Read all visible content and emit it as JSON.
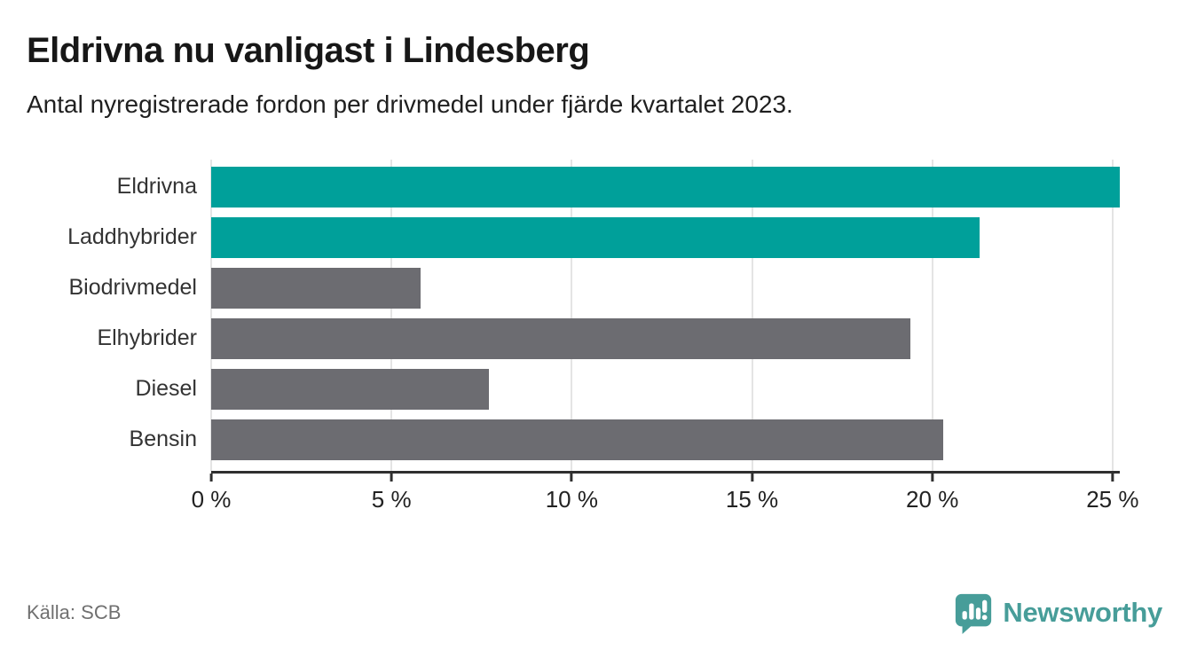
{
  "header": {
    "title": "Eldrivna nu vanligast i Lindesberg",
    "subtitle": "Antal nyregistrerade fordon per drivmedel under fjärde kvartalet 2023."
  },
  "chart_data": {
    "type": "bar",
    "orientation": "horizontal",
    "title": "Eldrivna nu vanligast i Lindesberg",
    "xlabel": "",
    "ylabel": "",
    "unit": "%",
    "categories": [
      "Eldrivna",
      "Laddhybrider",
      "Biodrivmedel",
      "Elhybrider",
      "Diesel",
      "Bensin"
    ],
    "values": [
      25.2,
      21.3,
      5.8,
      19.4,
      7.7,
      20.3
    ],
    "bar_colors": [
      "#00A09A",
      "#00A09A",
      "#6C6C71",
      "#6C6C71",
      "#6C6C71",
      "#6C6C71"
    ],
    "highlight_color": "#00A09A",
    "default_color": "#6C6C71",
    "x_ticks": [
      0,
      5,
      10,
      15,
      20,
      25
    ],
    "x_tick_labels": [
      "0 %",
      "5 %",
      "10 %",
      "15 %",
      "20 %",
      "25 %"
    ],
    "xlim": [
      0,
      25.2
    ],
    "grid": true,
    "legend": false
  },
  "footer": {
    "source": "Källa: SCB",
    "brand": "Newsworthy"
  },
  "colors": {
    "gridline": "#e4e4e4",
    "axis": "#2f2f2f",
    "logo_teal": "#479d99"
  }
}
